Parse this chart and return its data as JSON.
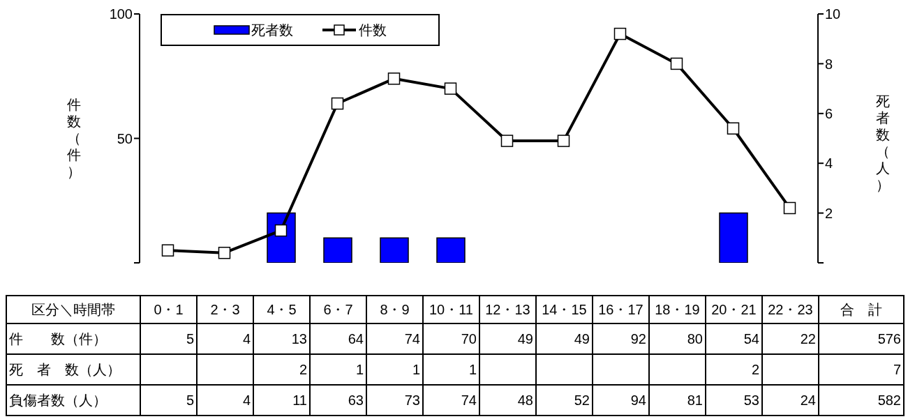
{
  "chart_data": {
    "type": "line",
    "categories": [
      "0・1",
      "2・3",
      "4・5",
      "6・7",
      "8・9",
      "10・11",
      "12・13",
      "14・15",
      "16・17",
      "18・19",
      "20・21",
      "22・23"
    ],
    "ylabel": "件数（件）",
    "y2label": "死者数（人）",
    "ylim": [
      0,
      100
    ],
    "yticks": [
      {
        "value": 0,
        "label": null
      },
      50,
      100
    ],
    "y2lim": [
      0,
      10
    ],
    "y2ticks": [
      {
        "value": 0,
        "label": null
      },
      2,
      4,
      6,
      8,
      10
    ],
    "legend": "top left",
    "grid": false,
    "marker": "square",
    "line_style": "solid",
    "series": [
      {
        "name": "件数",
        "color": "#000000",
        "values": [
          5,
          4,
          13,
          64,
          74,
          70,
          49,
          49,
          92,
          80,
          54,
          22
        ],
        "value_labels": [
          "5",
          "4",
          "13",
          "64",
          "74",
          "70",
          "49",
          "49",
          "92",
          "80",
          "54",
          "22"
        ]
      },
      {
        "name": "死者数",
        "type": "bar",
        "axis": "y2",
        "color": "#0000ff",
        "values": [
          0,
          0,
          2,
          1,
          1,
          1,
          0,
          0,
          0,
          0,
          2,
          0
        ],
        "value_labels": [
          null,
          null,
          "2",
          "1",
          "1",
          "1",
          null,
          null,
          null,
          null,
          "2",
          null
        ]
      }
    ],
    "annotations": [
      "区分＼時間帯",
      "合　計",
      "件　　数（件）",
      "死　者　数（人）",
      "576",
      "7",
      "負傷者数（人）",
      "5",
      "4",
      "11",
      "63",
      "73",
      "74",
      "48",
      "52",
      "94",
      "81",
      "53",
      "24",
      "582"
    ]
  }
}
